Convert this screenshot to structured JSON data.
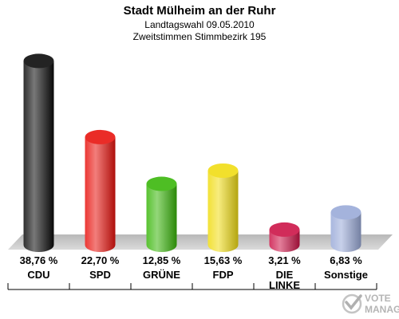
{
  "chart_data": {
    "type": "bar",
    "title": "Stadt Mülheim an der Ruhr",
    "subtitle_lines": [
      "Landtagswahl 09.05.2010",
      "Zweitstimmen Stimmbezirk 195"
    ],
    "categories": [
      [
        "CDU"
      ],
      [
        "SPD"
      ],
      [
        "GRÜNE"
      ],
      [
        "FDP"
      ],
      [
        "DIE",
        "LINKE"
      ],
      [
        "Sonstige"
      ]
    ],
    "values": [
      38.76,
      22.7,
      12.85,
      15.63,
      3.21,
      6.83
    ],
    "value_labels": [
      "38,76 %",
      "22,70 %",
      "12,85 %",
      "15,63 %",
      "3,21 %",
      "6,83 %"
    ],
    "colors": [
      "#0a0a0a",
      "#e8140f",
      "#3ab70c",
      "#f0dc14",
      "#cc1448",
      "#9aaad8"
    ],
    "ylim": [
      0,
      40
    ],
    "grid": false,
    "legend": "none"
  },
  "watermark": {
    "icon": "vote-check-logo",
    "lines": [
      "VOTE",
      "MANAGER"
    ]
  }
}
